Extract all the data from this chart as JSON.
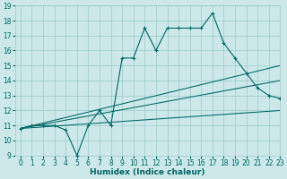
{
  "title": "",
  "xlabel": "Humidex (Indice chaleur)",
  "x_main": [
    0,
    1,
    2,
    3,
    4,
    5,
    6,
    7,
    8,
    9,
    10,
    11,
    12,
    13,
    14,
    15,
    16,
    17,
    18,
    19,
    20,
    21,
    22,
    23
  ],
  "y_main": [
    10.8,
    11.0,
    11.0,
    11.0,
    10.7,
    9.0,
    11.0,
    12.0,
    11.0,
    15.5,
    15.5,
    17.5,
    16.0,
    17.5,
    17.5,
    17.5,
    17.5,
    18.5,
    16.5,
    15.5,
    14.5,
    13.5,
    13.0,
    12.8
  ],
  "y_line1_start": 10.8,
  "y_line1_end": 15.0,
  "y_line2_start": 10.8,
  "y_line2_end": 14.0,
  "y_line3_start": 10.8,
  "y_line3_end": 12.0,
  "color_main": "#006666",
  "bg_color": "#cce8e8",
  "grid_color": "#99cccc",
  "ylim": [
    9,
    19
  ],
  "xlim": [
    -0.5,
    23
  ],
  "yticks": [
    9,
    10,
    11,
    12,
    13,
    14,
    15,
    16,
    17,
    18,
    19
  ],
  "xticks": [
    0,
    1,
    2,
    3,
    4,
    5,
    6,
    7,
    8,
    9,
    10,
    11,
    12,
    13,
    14,
    15,
    16,
    17,
    18,
    19,
    20,
    21,
    22,
    23
  ],
  "tick_fontsize": 5.5,
  "xlabel_fontsize": 6.5
}
